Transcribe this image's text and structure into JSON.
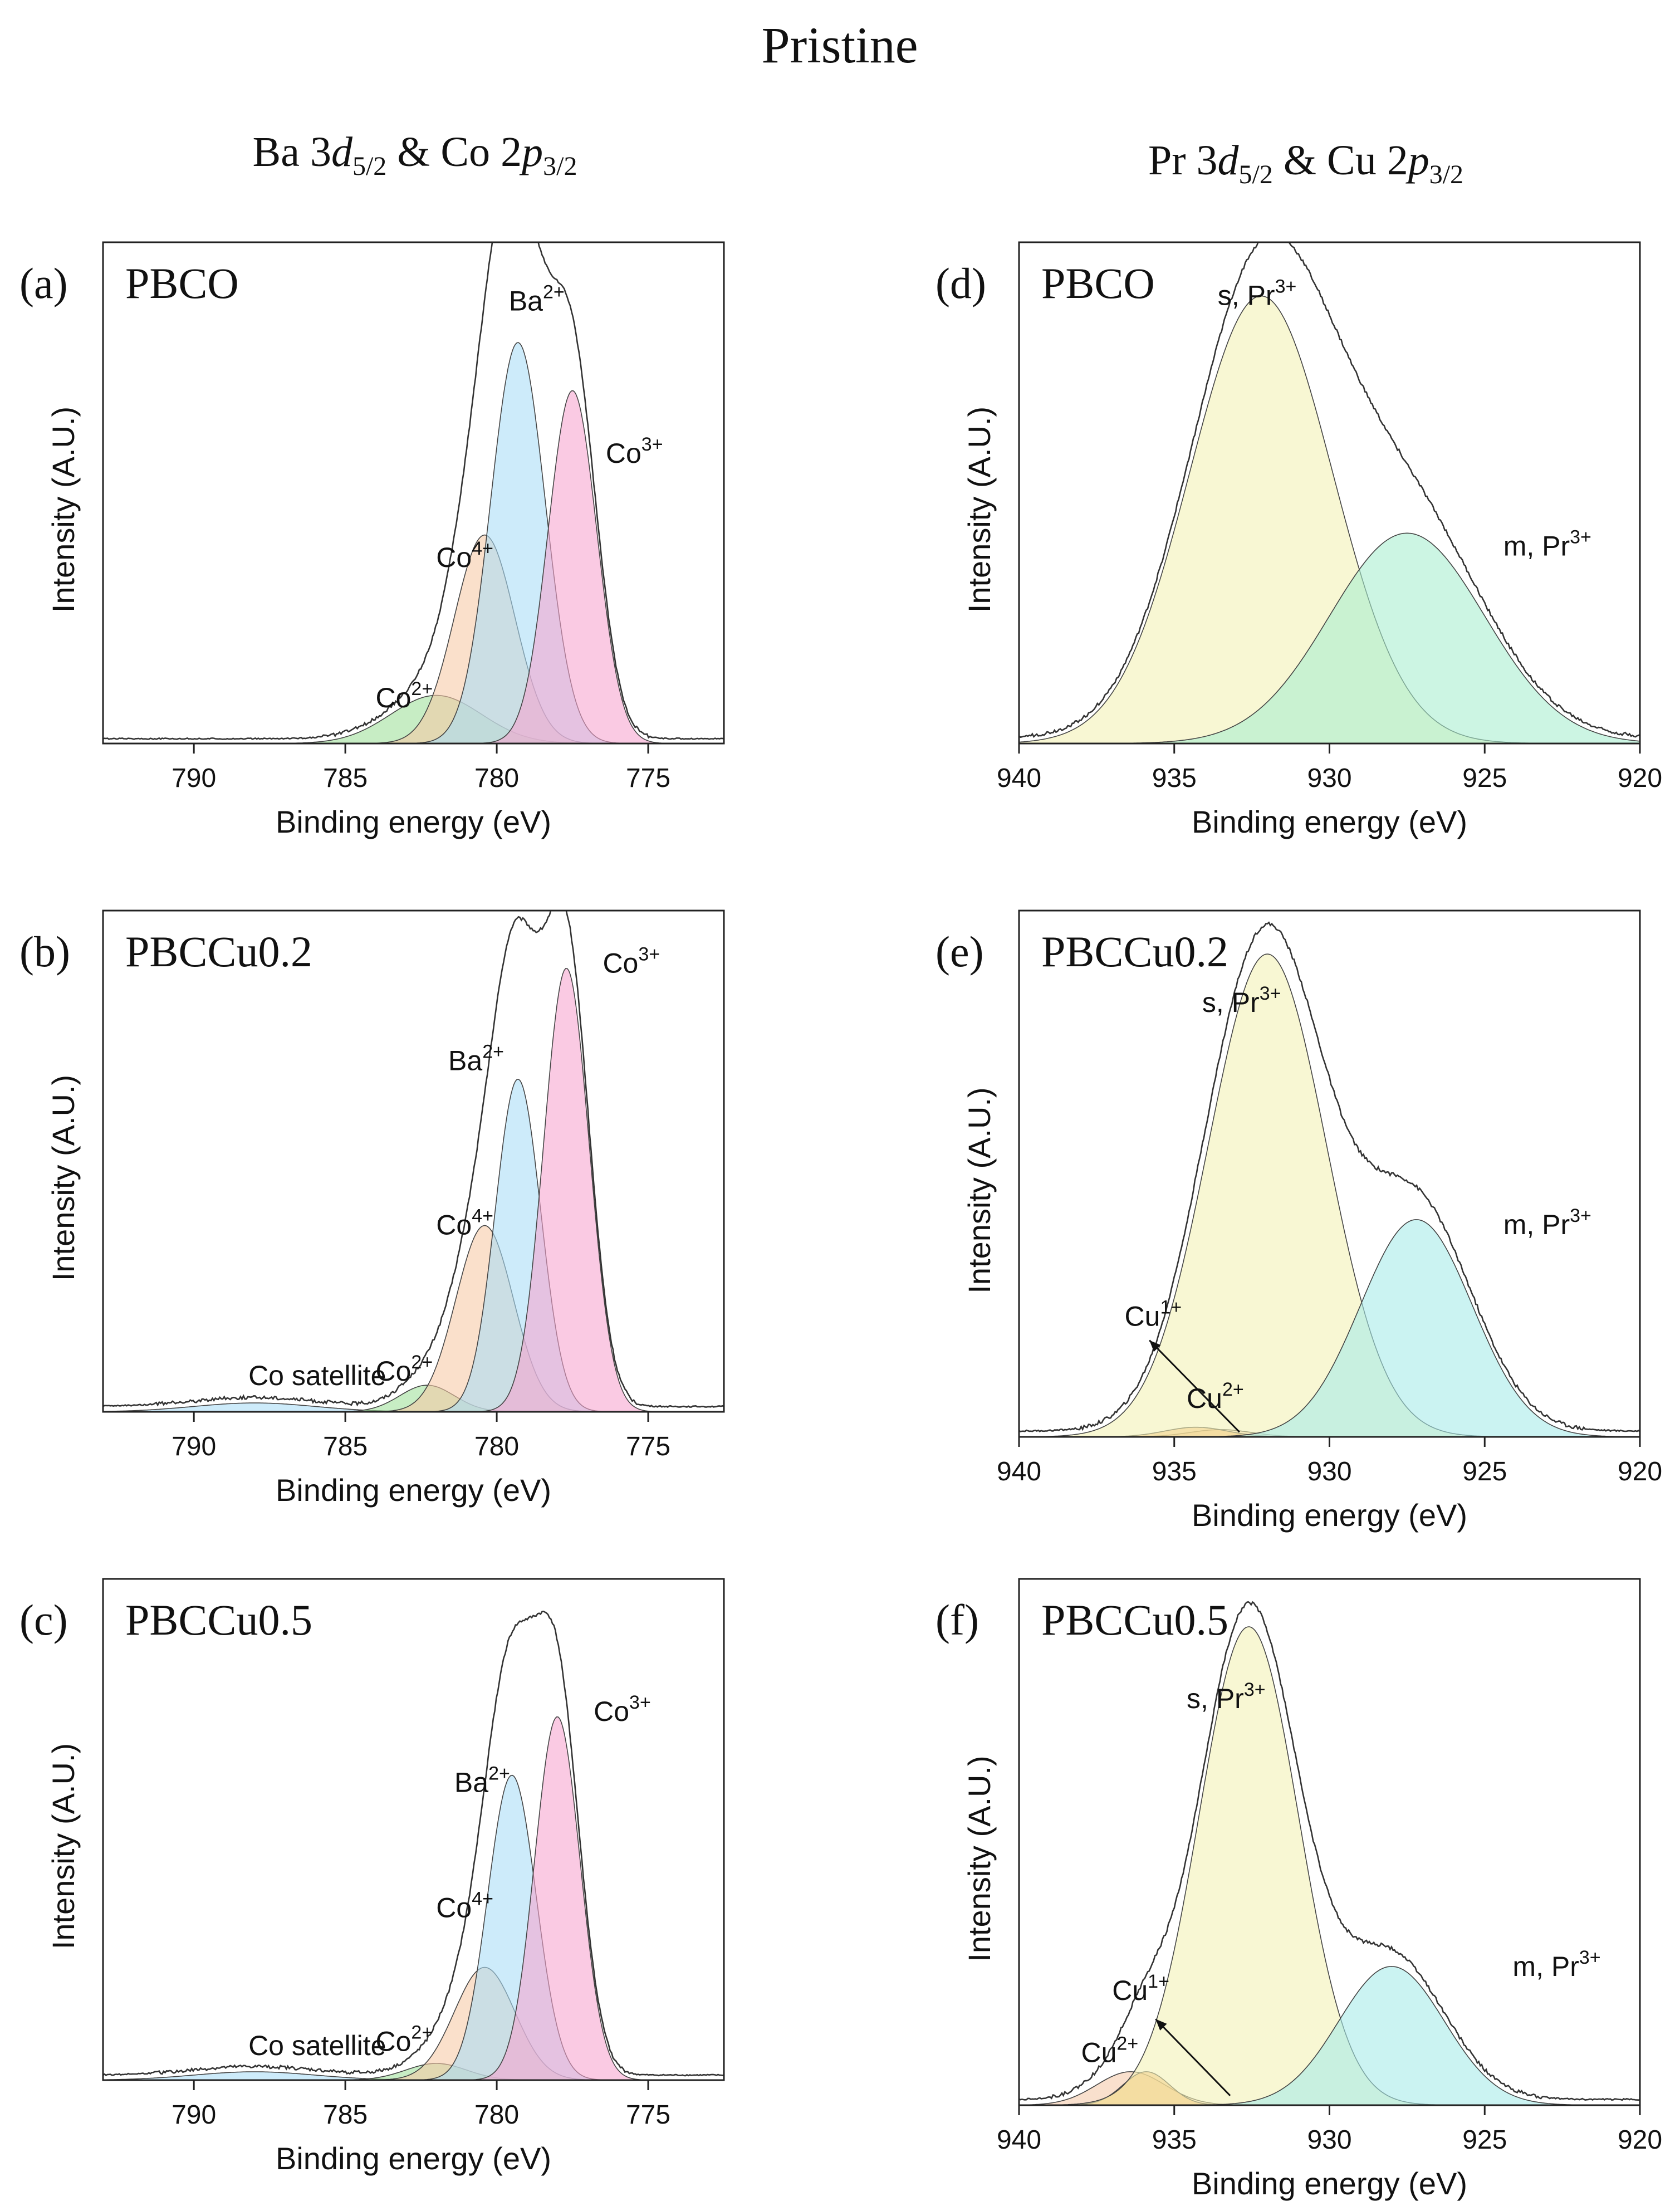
{
  "figure_title": "Pristine",
  "column_headers": [
    {
      "element": "Ba",
      "orbital_n": "3",
      "orbital_l": "d",
      "j": "5/2",
      "amp": "&",
      "element2": "Co",
      "orbital2_n": "2",
      "orbital2_l": "p",
      "j2": "3/2"
    },
    {
      "element": "Pr",
      "orbital_n": "3",
      "orbital_l": "d",
      "j": "5/2",
      "amp": "&",
      "element2": "Cu",
      "orbital2_n": "2",
      "orbital2_l": "p",
      "j2": "3/2"
    }
  ],
  "colors": {
    "co2": "#9fe09a",
    "co4": "#f7c9a6",
    "ba2": "#a9dcf7",
    "co3": "#f7a3cf",
    "pr_s": "#f3f1b4",
    "pr_m_d": "#a7edce",
    "pr_m": "#a5ebe9",
    "cu1": "#f5c9a8",
    "cu2": "#f1a85a",
    "envelope": "#333333"
  },
  "chart_data": [
    {
      "id": "a",
      "type": "area",
      "panel_label": "(a)",
      "sample": "PBCO",
      "xlabel": "Binding energy (eV)",
      "ylabel": "Intensity (A.U.)",
      "xlim": [
        793,
        772.5
      ],
      "ylim": [
        0,
        1.25
      ],
      "xticks": [
        790,
        785,
        780,
        775
      ],
      "series": [
        {
          "name": "Co2+",
          "ion": "Co",
          "charge": "2+",
          "center": 782.0,
          "sigma": 1.5,
          "height": 0.12,
          "color": "#9fe09a"
        },
        {
          "name": "Co4+",
          "ion": "Co",
          "charge": "4+",
          "center": 780.4,
          "sigma": 1.0,
          "height": 0.52,
          "color": "#f7c9a6"
        },
        {
          "name": "Ba2+",
          "ion": "Ba",
          "charge": "2+",
          "center": 779.3,
          "sigma": 0.9,
          "height": 1.0,
          "color": "#a9dcf7"
        },
        {
          "name": "Co3+",
          "ion": "Co",
          "charge": "3+",
          "center": 777.5,
          "sigma": 0.8,
          "height": 0.88,
          "color": "#f7a3cf"
        }
      ],
      "annotations": [
        {
          "ion": "Ba",
          "charge": "2+",
          "x": 779.6,
          "y": 1.08
        },
        {
          "ion": "Co",
          "charge": "3+",
          "x": 776.4,
          "y": 0.7
        },
        {
          "ion": "Co",
          "charge": "4+",
          "x": 782.0,
          "y": 0.44
        },
        {
          "ion": "Co",
          "charge": "2+",
          "x": 784.0,
          "y": 0.09
        }
      ]
    },
    {
      "id": "b",
      "type": "area",
      "panel_label": "(b)",
      "sample": "PBCCu0.2",
      "xlabel": "Binding energy (eV)",
      "ylabel": "Intensity (A.U.)",
      "xlim": [
        793,
        772.5
      ],
      "ylim": [
        0,
        1.13
      ],
      "xticks": [
        790,
        785,
        780,
        775
      ],
      "series": [
        {
          "name": "Co satellite",
          "center": 788.0,
          "sigma": 2.0,
          "height": 0.02,
          "color": "#a9dcf7"
        },
        {
          "name": "Co2+",
          "ion": "Co",
          "charge": "2+",
          "center": 782.3,
          "sigma": 0.9,
          "height": 0.06,
          "color": "#9fe09a"
        },
        {
          "name": "Co4+",
          "ion": "Co",
          "charge": "4+",
          "center": 780.4,
          "sigma": 0.95,
          "height": 0.42,
          "color": "#f7c9a6"
        },
        {
          "name": "Ba2+",
          "ion": "Ba",
          "charge": "2+",
          "center": 779.3,
          "sigma": 0.75,
          "height": 0.75,
          "color": "#a9dcf7"
        },
        {
          "name": "Co3+",
          "ion": "Co",
          "charge": "3+",
          "center": 777.7,
          "sigma": 0.75,
          "height": 1.0,
          "color": "#f7a3cf"
        }
      ],
      "annotations": [
        {
          "ion": "Co",
          "charge": "3+",
          "x": 776.5,
          "y": 0.99
        },
        {
          "ion": "Ba",
          "charge": "2+",
          "x": 781.6,
          "y": 0.77
        },
        {
          "ion": "Co",
          "charge": "4+",
          "x": 782.0,
          "y": 0.4
        },
        {
          "ion": "Co",
          "charge": "2+",
          "x": 784.0,
          "y": 0.07
        },
        {
          "text": "Co satellite",
          "x": 788.2,
          "y": 0.06
        }
      ]
    },
    {
      "id": "c",
      "type": "area",
      "panel_label": "(c)",
      "sample": "PBCCu0.5",
      "xlabel": "Binding energy (eV)",
      "ylabel": "Intensity (A.U.)",
      "xlim": [
        793,
        772.5
      ],
      "ylim": [
        0,
        1.2
      ],
      "xticks": [
        790,
        785,
        780,
        775
      ],
      "series": [
        {
          "name": "Co satellite",
          "center": 788.0,
          "sigma": 2.0,
          "height": 0.02,
          "color": "#a9dcf7"
        },
        {
          "name": "Co2+",
          "ion": "Co",
          "charge": "2+",
          "center": 782.0,
          "sigma": 1.0,
          "height": 0.04,
          "color": "#9fe09a"
        },
        {
          "name": "Co4+",
          "ion": "Co",
          "charge": "4+",
          "center": 780.4,
          "sigma": 1.0,
          "height": 0.27,
          "color": "#f7c9a6"
        },
        {
          "name": "Ba2+",
          "ion": "Ba",
          "charge": "2+",
          "center": 779.5,
          "sigma": 0.8,
          "height": 0.73,
          "color": "#a9dcf7"
        },
        {
          "name": "Co3+",
          "ion": "Co",
          "charge": "3+",
          "center": 778.0,
          "sigma": 0.75,
          "height": 0.87,
          "color": "#f7a3cf"
        }
      ],
      "annotations": [
        {
          "ion": "Co",
          "charge": "3+",
          "x": 776.8,
          "y": 0.86
        },
        {
          "ion": "Ba",
          "charge": "2+",
          "x": 781.4,
          "y": 0.69
        },
        {
          "ion": "Co",
          "charge": "4+",
          "x": 782.0,
          "y": 0.39
        },
        {
          "ion": "Co",
          "charge": "2+",
          "x": 784.0,
          "y": 0.07
        },
        {
          "text": "Co satellite",
          "x": 788.2,
          "y": 0.06
        }
      ]
    },
    {
      "id": "d",
      "type": "area",
      "panel_label": "(d)",
      "sample": "PBCO",
      "xlabel": "Binding energy (eV)",
      "ylabel": "Intensity (A.U.)",
      "xlim": [
        940,
        920
      ],
      "ylim": [
        0,
        1.12
      ],
      "xticks": [
        940,
        935,
        930,
        925,
        920
      ],
      "series": [
        {
          "name": "s, Pr3+",
          "prefix": "s, Pr",
          "charge": "3+",
          "center": 932.2,
          "sigma": 2.3,
          "height": 1.0,
          "color": "#f3f1b4"
        },
        {
          "name": "m, Pr3+",
          "prefix": "m, Pr",
          "charge": "3+",
          "center": 927.5,
          "sigma": 2.5,
          "height": 0.47,
          "color": "#a7edce"
        }
      ],
      "annotations": [
        {
          "prefix": "s, Pr",
          "charge": "3+",
          "x": 933.6,
          "y": 0.98
        },
        {
          "prefix": "m, Pr",
          "charge": "3+",
          "x": 924.4,
          "y": 0.42
        }
      ]
    },
    {
      "id": "e",
      "type": "area",
      "panel_label": "(e)",
      "sample": "PBCCu0.2",
      "xlabel": "Binding energy (eV)",
      "ylabel": "Intensity (A.U.)",
      "xlim": [
        940,
        920
      ],
      "ylim": [
        0,
        1.09
      ],
      "xticks": [
        940,
        935,
        930,
        925,
        920
      ],
      "series": [
        {
          "name": "Cu1+",
          "ion": "Cu",
          "charge": "1+",
          "center": 933.5,
          "sigma": 1.0,
          "height": 0.015,
          "color": "#f5c9a8"
        },
        {
          "name": "Cu2+",
          "ion": "Cu",
          "charge": "2+",
          "center": 934.3,
          "sigma": 1.0,
          "height": 0.02,
          "color": "#f1a85a"
        },
        {
          "name": "s, Pr3+",
          "prefix": "s, Pr",
          "charge": "3+",
          "center": 932.0,
          "sigma": 1.9,
          "height": 1.0,
          "color": "#f3f1b4"
        },
        {
          "name": "m, Pr3+",
          "prefix": "m, Pr",
          "charge": "3+",
          "center": 927.2,
          "sigma": 1.8,
          "height": 0.45,
          "color": "#a5ebe9"
        }
      ],
      "annotations": [
        {
          "prefix": "s, Pr",
          "charge": "3+",
          "x": 934.1,
          "y": 0.88
        },
        {
          "prefix": "m, Pr",
          "charge": "3+",
          "x": 924.4,
          "y": 0.42
        },
        {
          "ion": "Cu",
          "charge": "1+",
          "x": 936.6,
          "y": 0.23
        },
        {
          "ion": "Cu",
          "charge": "2+",
          "x": 934.6,
          "y": 0.06
        }
      ]
    },
    {
      "id": "f",
      "type": "area",
      "panel_label": "(f)",
      "sample": "PBCCu0.5",
      "xlabel": "Binding energy (eV)",
      "ylabel": "Intensity (A.U.)",
      "xlim": [
        940,
        920
      ],
      "ylim": [
        0,
        1.1
      ],
      "xticks": [
        940,
        935,
        930,
        925,
        920
      ],
      "series": [
        {
          "name": "Cu1+",
          "ion": "Cu",
          "charge": "1+",
          "center": 936.4,
          "sigma": 1.1,
          "height": 0.07,
          "color": "#f5c9a8"
        },
        {
          "name": "Cu2+",
          "ion": "Cu",
          "charge": "2+",
          "center": 935.9,
          "sigma": 0.75,
          "height": 0.07,
          "color": "#f1a85a"
        },
        {
          "name": "s, Pr3+",
          "prefix": "s, Pr",
          "charge": "3+",
          "center": 932.6,
          "sigma": 1.6,
          "height": 1.0,
          "color": "#f3f1b4"
        },
        {
          "name": "m, Pr3+",
          "prefix": "m, Pr",
          "charge": "3+",
          "center": 928.0,
          "sigma": 1.7,
          "height": 0.29,
          "color": "#a5ebe9"
        }
      ],
      "annotations": [
        {
          "prefix": "s, Pr",
          "charge": "3+",
          "x": 934.6,
          "y": 0.83
        },
        {
          "prefix": "m, Pr",
          "charge": "3+",
          "x": 924.1,
          "y": 0.27
        },
        {
          "ion": "Cu",
          "charge": "1+",
          "x": 937.0,
          "y": 0.22
        },
        {
          "ion": "Cu",
          "charge": "2+",
          "x": 938.0,
          "y": 0.09
        }
      ]
    }
  ]
}
